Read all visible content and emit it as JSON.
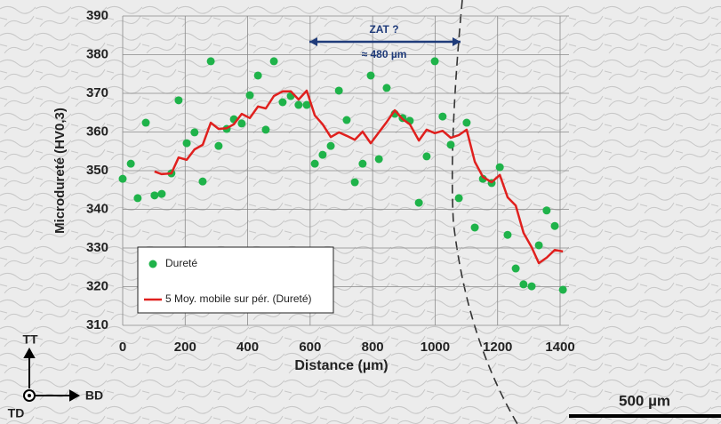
{
  "chart_data": {
    "type": "scatter",
    "x_label": "Distance (µm)",
    "y_label": "Microdureté (HV0,3)",
    "x": [
      0,
      26,
      48,
      74,
      102,
      125,
      156,
      179,
      205,
      230,
      256,
      282,
      307,
      333,
      356,
      381,
      407,
      433,
      458,
      484,
      512,
      538,
      563,
      589,
      615,
      640,
      666,
      692,
      717,
      743,
      768,
      794,
      820,
      845,
      871,
      896,
      919,
      948,
      973,
      999,
      1024,
      1050,
      1076,
      1101,
      1127,
      1153,
      1181,
      1207,
      1232,
      1258,
      1283,
      1309,
      1332,
      1357,
      1383,
      1409
    ],
    "series": [
      {
        "name": "Dureté",
        "type": "scatter",
        "color": "#1fb34a",
        "values": [
          347.9,
          351.8,
          342.9,
          362.4,
          343.6,
          344,
          349.3,
          368.2,
          357.1,
          359.9,
          347.2,
          378.3,
          356.4,
          360.8,
          363.3,
          362.2,
          369.5,
          374.6,
          360.6,
          378.3,
          367.7,
          369.3,
          367,
          367,
          351.8,
          354.1,
          356.4,
          370.7,
          363.1,
          347,
          351.8,
          374.6,
          353,
          371.4,
          364.7,
          363.6,
          362.9,
          341.7,
          353.7,
          378.3,
          364,
          356.7,
          342.9,
          362.4,
          335.3,
          347.9,
          346.8,
          350.9,
          333.4,
          324.7,
          320.6,
          320.1,
          330.7,
          339.7,
          335.7,
          319.2
        ]
      },
      {
        "name": "5 Moy. mobile sur pér. (Dureté)",
        "type": "line",
        "color": "#e0201e",
        "values": [
          null,
          null,
          null,
          null,
          349.8,
          349.1,
          349.3,
          353.4,
          352.8,
          355.5,
          356.7,
          362.4,
          360.8,
          361,
          362,
          364.7,
          363.6,
          366.6,
          366.1,
          369.3,
          370.5,
          370.5,
          368.4,
          370.7,
          364.3,
          362,
          358.7,
          359.9,
          359,
          358,
          360.1,
          357.1,
          359.9,
          362.6,
          365.6,
          363.3,
          362,
          357.8,
          360.6,
          359.7,
          360.3,
          358.5,
          359.2,
          360.6,
          352.3,
          348.4,
          347,
          348.9,
          343.1,
          341,
          333.9,
          330.2,
          326.1,
          327.5,
          329.5,
          329.1
        ]
      }
    ],
    "xlim": [
      0,
      1400
    ],
    "ylim": [
      310,
      390
    ],
    "xticks": [
      0,
      200,
      400,
      600,
      800,
      1000,
      1200,
      1400
    ],
    "yticks": [
      310,
      320,
      330,
      340,
      350,
      360,
      370,
      380,
      390
    ],
    "grid": true,
    "legend": "lower-left",
    "annotations": [
      "ZAT ?",
      "≈ 480 µm"
    ]
  },
  "overlay": {
    "scale_bar": "500 µm",
    "directions": [
      "TT",
      "BD",
      "TD"
    ]
  }
}
